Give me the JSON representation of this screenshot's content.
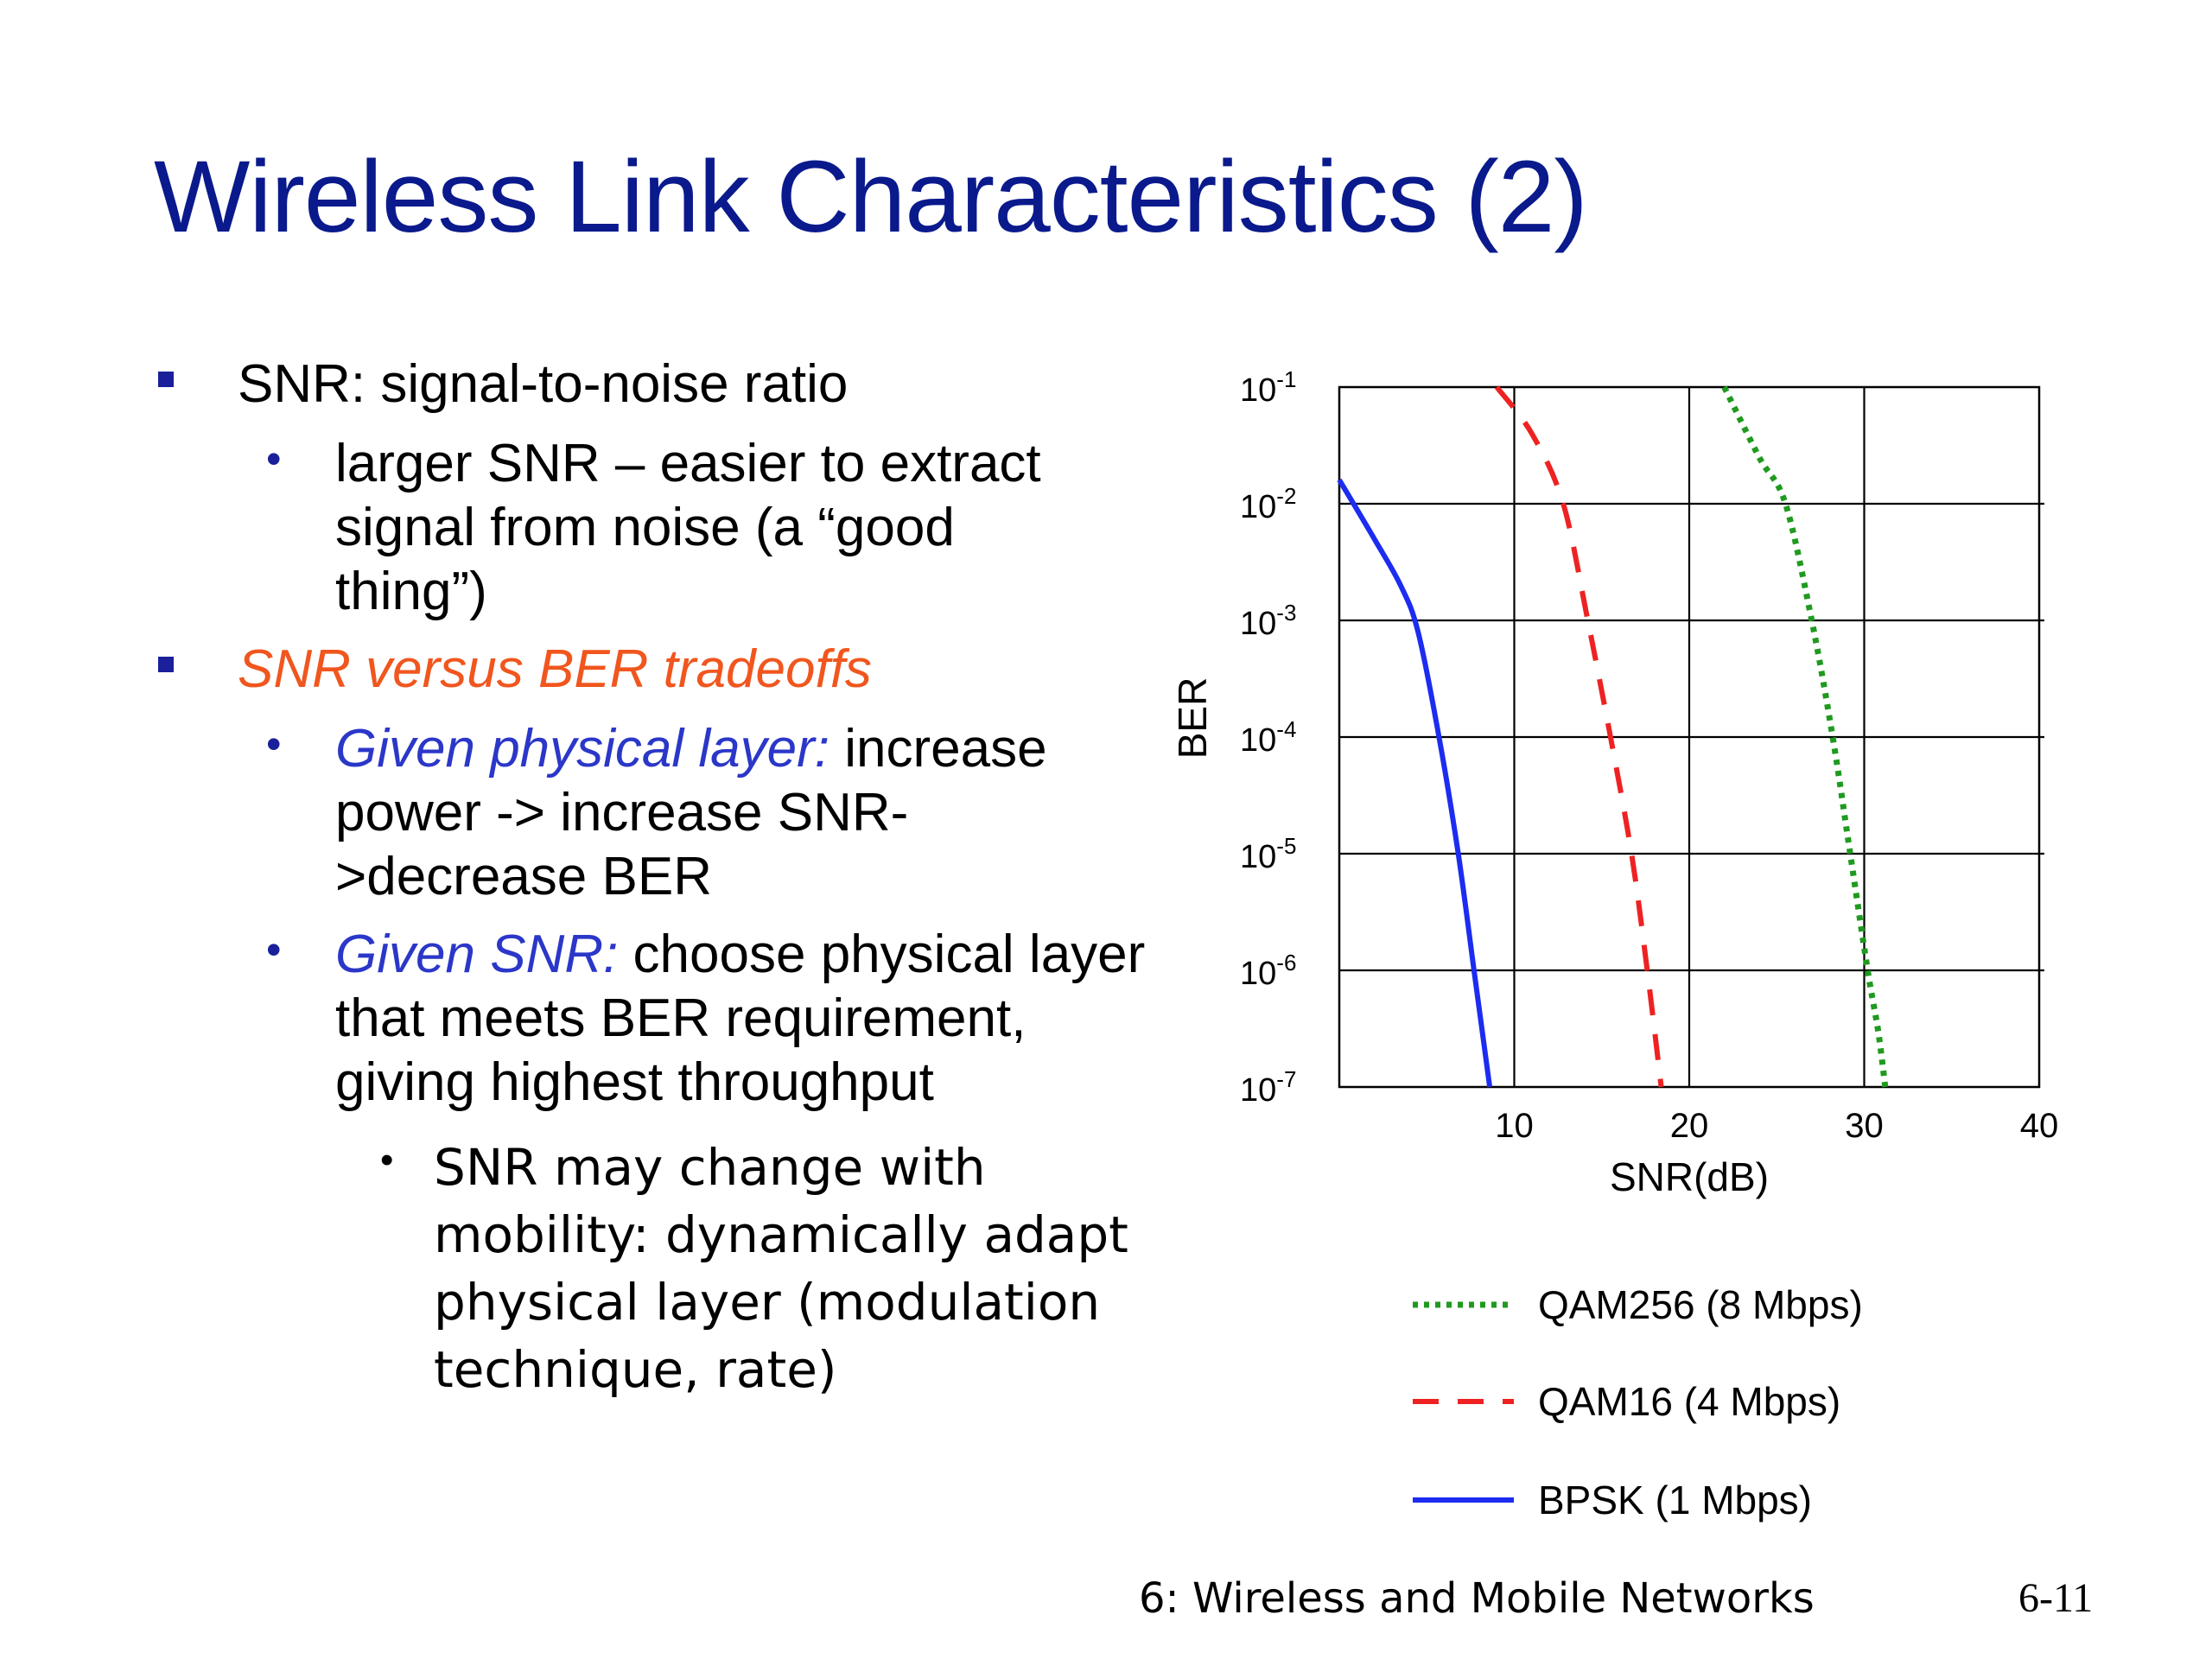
{
  "slide": {
    "title": "Wireless Link Characteristics (2)",
    "footer": "6: Wireless and Mobile Networks",
    "page_number": "6-11"
  },
  "bullets": {
    "b1": "SNR: signal-to-noise ratio",
    "b1_sub1_l1": "larger SNR – easier to extract",
    "b1_sub1_l2": "signal from noise (a “good",
    "b1_sub1_l3": "thing”)",
    "b2": "SNR versus BER tradeoffs",
    "b2_sub1_prefix": "Given physical layer:",
    "b2_sub1_l1_rest": " increase",
    "b2_sub1_l2": "power -> increase SNR-",
    "b2_sub1_l3": ">decrease BER",
    "b2_sub2_prefix": "Given SNR:",
    "b2_sub2_l1_rest": " choose physical layer",
    "b2_sub2_l2": "that meets BER requirement,",
    "b2_sub2_l3": "giving highest throughput",
    "b2_sub2_sub_l1": "SNR may change with",
    "b2_sub2_sub_l2": "mobility: dynamically adapt",
    "b2_sub2_sub_l3": "physical layer (modulation",
    "b2_sub2_sub_l4": "technique, rate)"
  },
  "chart_data": {
    "type": "line",
    "xlabel": "SNR(dB)",
    "ylabel": "BER",
    "xlim": [
      0,
      40
    ],
    "y_scale": "log",
    "ylim": [
      1e-07,
      0.1
    ],
    "x_ticks": [
      "10",
      "20",
      "30",
      "40"
    ],
    "y_ticks": [
      {
        "base": "10",
        "exp": "-1"
      },
      {
        "base": "10",
        "exp": "-2"
      },
      {
        "base": "10",
        "exp": "-3"
      },
      {
        "base": "10",
        "exp": "-4"
      },
      {
        "base": "10",
        "exp": "-5"
      },
      {
        "base": "10",
        "exp": "-6"
      },
      {
        "base": "10",
        "exp": "-7"
      }
    ],
    "grid": true,
    "legend_position": "below",
    "series": [
      {
        "name": "QAM256 (8 Mbps)",
        "style": "dotted",
        "color": "#1f9a1f",
        "x": [
          22.0,
          24.0,
          25.5,
          27.0,
          28.2,
          29.2,
          30.2,
          30.8,
          31.2
        ],
        "y": [
          0.1,
          0.025,
          0.01,
          0.001,
          0.0001,
          1e-05,
          1e-06,
          3e-07,
          1e-07
        ]
      },
      {
        "name": "QAM16 (4 Mbps)",
        "style": "dashed",
        "color": "#ee2222",
        "x": [
          9.0,
          11.0,
          12.8,
          14.2,
          15.5,
          16.7,
          17.6,
          18.4
        ],
        "y": [
          0.1,
          0.04,
          0.01,
          0.001,
          0.0001,
          1e-05,
          1e-06,
          1e-07
        ]
      },
      {
        "name": "BPSK (1 Mbps)",
        "style": "solid",
        "color": "#1c2cf0",
        "x": [
          0.0,
          2.0,
          3.5,
          4.5,
          5.7,
          6.8,
          7.7,
          8.6
        ],
        "y": [
          0.016,
          0.005,
          0.002,
          0.0008,
          0.0001,
          1e-05,
          1e-06,
          1e-07
        ]
      }
    ]
  }
}
